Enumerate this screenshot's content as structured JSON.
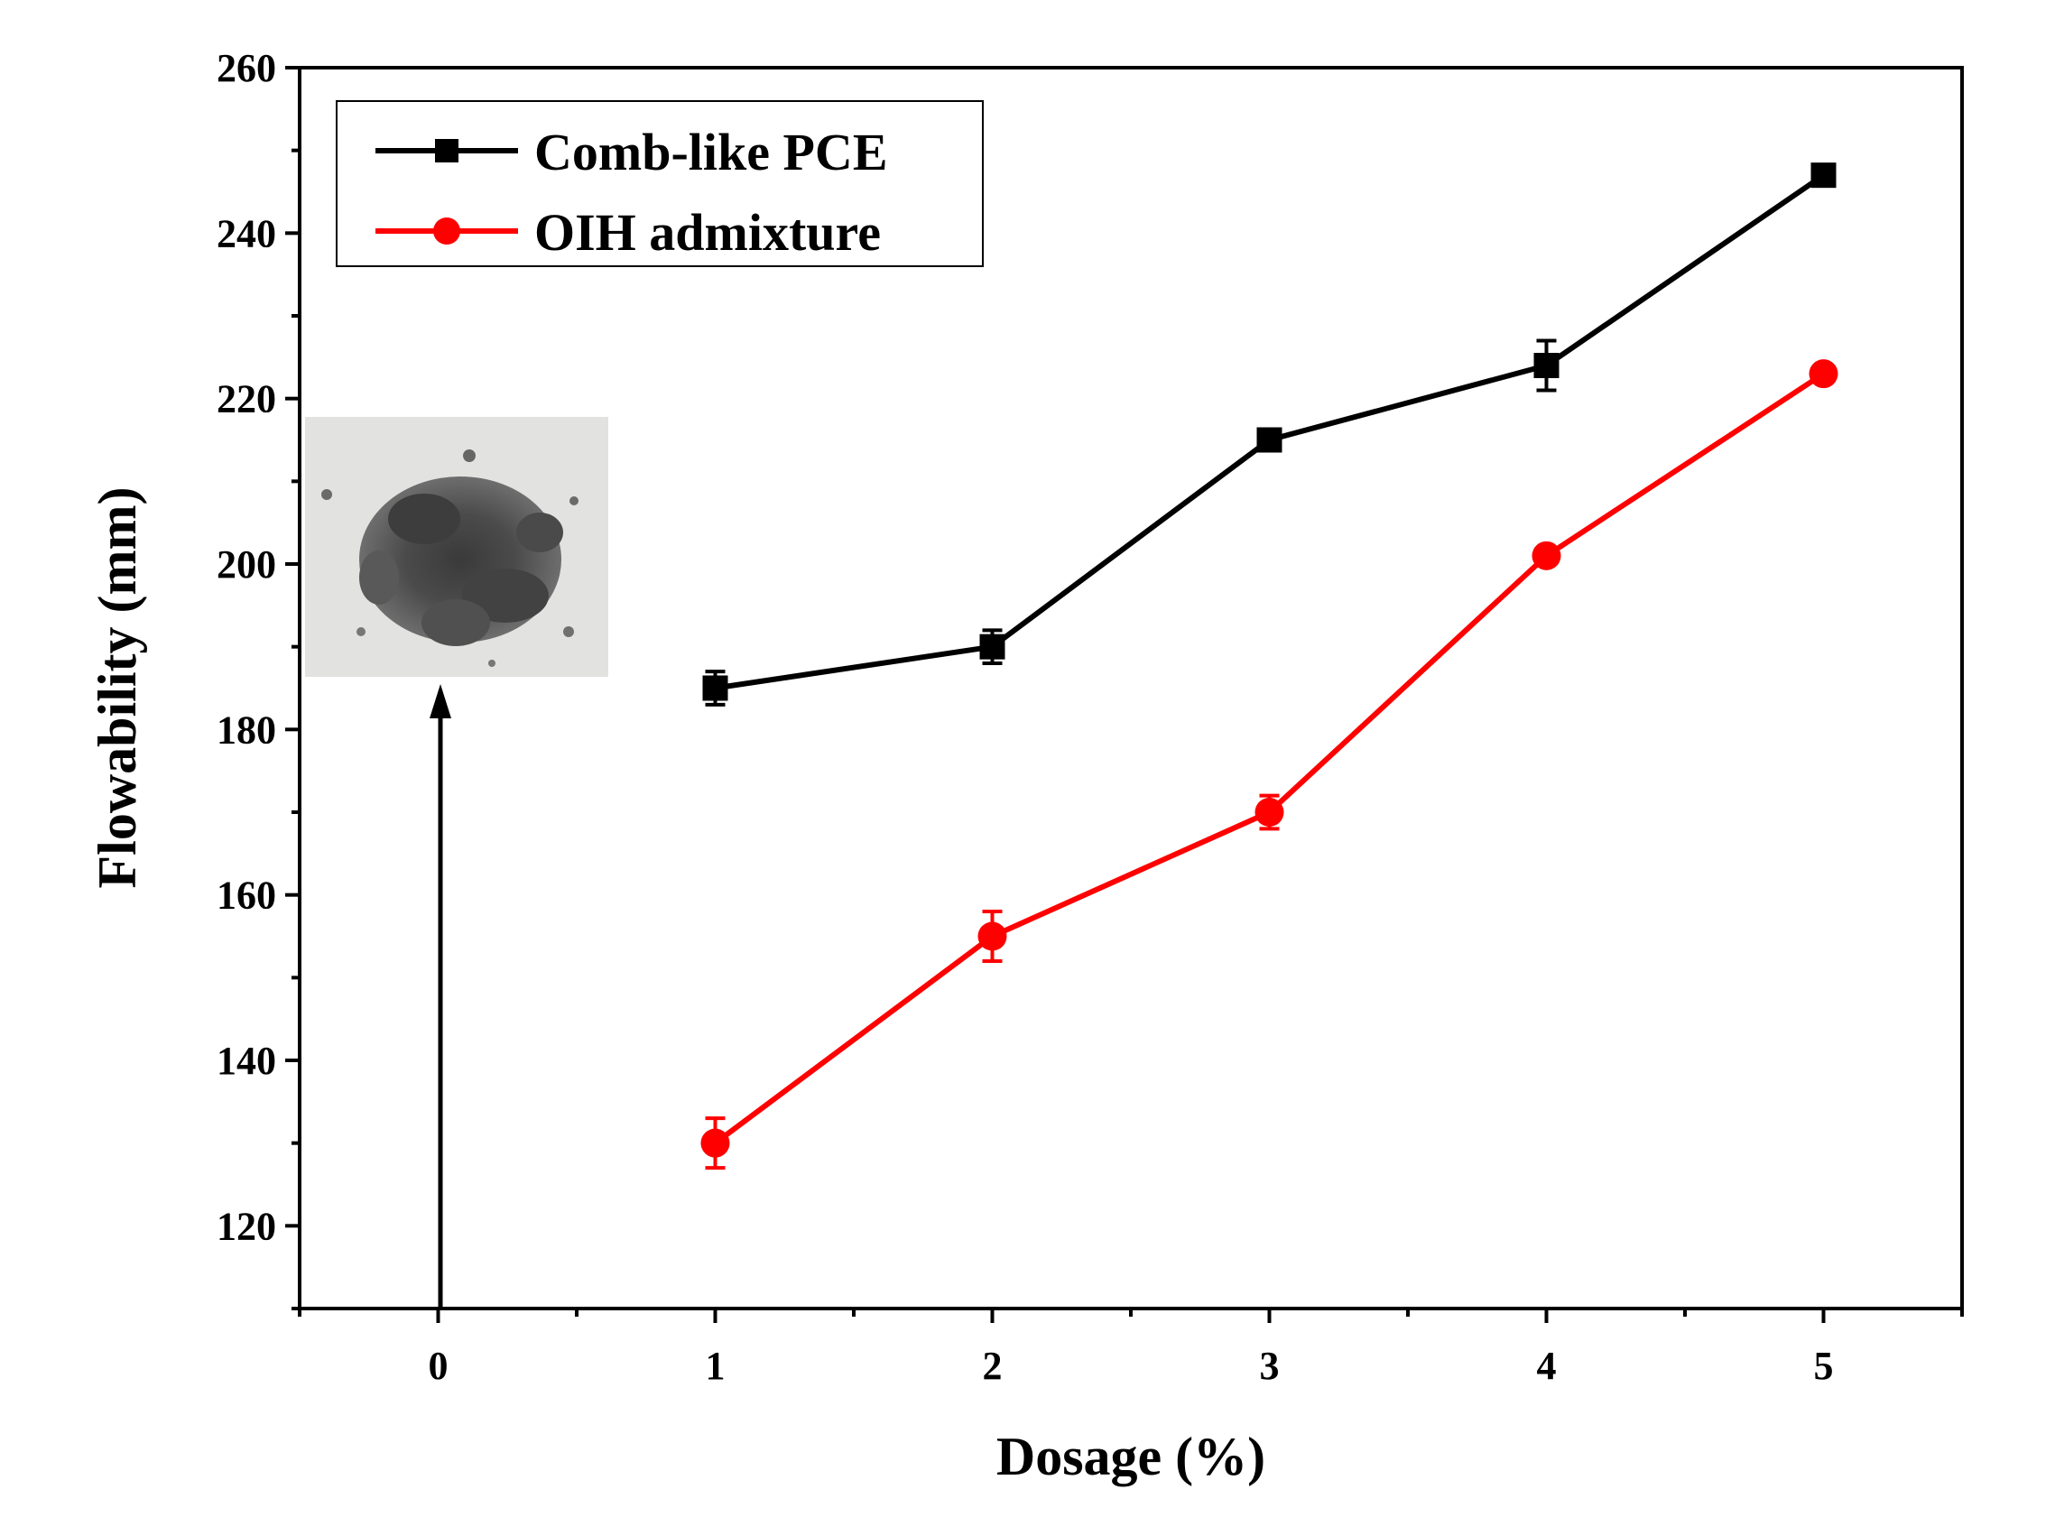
{
  "chart_data": {
    "type": "line",
    "title": "",
    "xlabel": "Dosage (%)",
    "ylabel": "Flowability (mm)",
    "xlim": [
      -0.5,
      5.5
    ],
    "ylim": [
      110,
      260
    ],
    "x_ticks": [
      0,
      1,
      2,
      3,
      4,
      5
    ],
    "x_tick_labels": [
      "0",
      "1",
      "2",
      "3",
      "4",
      "5"
    ],
    "y_ticks": [
      120,
      140,
      160,
      180,
      200,
      220,
      240,
      260
    ],
    "y_tick_labels": [
      "120",
      "140",
      "160",
      "180",
      "200",
      "220",
      "240",
      "260"
    ],
    "grid": false,
    "legend_position": "top-left",
    "series": [
      {
        "name": "Comb-like PCE",
        "color": "#000000",
        "marker": "square",
        "x": [
          1,
          2,
          3,
          4,
          5
        ],
        "y": [
          185,
          190,
          215,
          224,
          247
        ],
        "error": [
          2,
          2,
          1,
          3,
          1
        ]
      },
      {
        "name": "OIH admixture",
        "color": "#ff0000",
        "marker": "circle",
        "x": [
          1,
          2,
          3,
          4,
          5
        ],
        "y": [
          130,
          155,
          170,
          201,
          223
        ],
        "error": [
          3,
          3,
          2,
          1,
          1
        ]
      }
    ],
    "inset": {
      "description_icon": "powder-photo",
      "arrow_at_x": 0
    }
  }
}
